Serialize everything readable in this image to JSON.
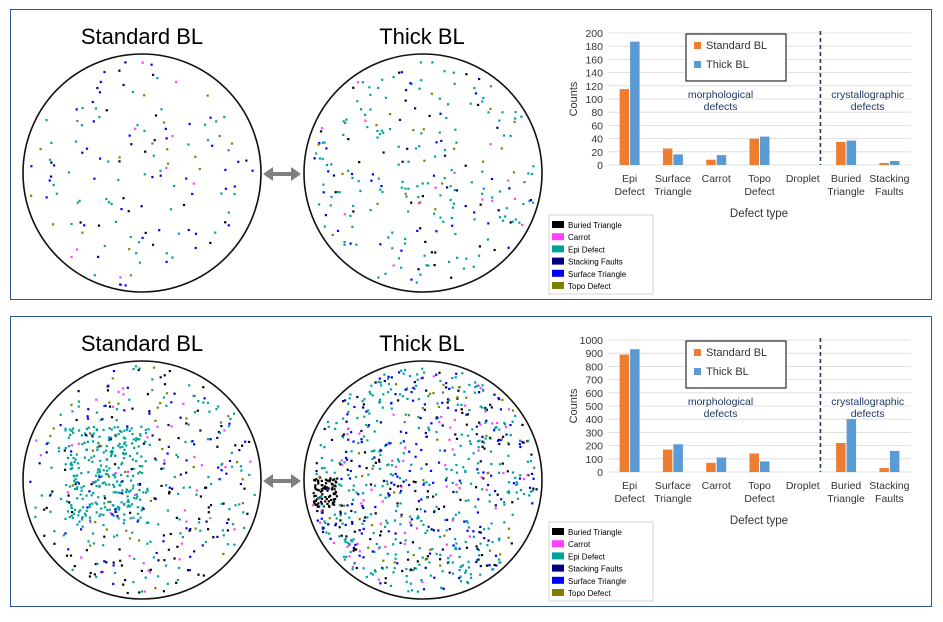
{
  "colors": {
    "buried_triangle": "#000000",
    "carrot": "#ff40ff",
    "epi_defect": "#00a39a",
    "stacking_faults": "#000080",
    "surface_triangle": "#0000ff",
    "topo_defect": "#808000",
    "standard_bl": "#ed7d31",
    "thick_bl": "#5b9bd5",
    "divider": "#1f3864",
    "annotation": "#1f3864"
  },
  "panels": [
    {
      "map_titles": [
        "Standard BL",
        "Thick BL"
      ],
      "arrow_icon": "double-arrow-icon",
      "map_legend": [
        {
          "label": "Buried Triangle",
          "color_key": "buried_triangle"
        },
        {
          "label": "Carrot",
          "color_key": "carrot"
        },
        {
          "label": "Epi Defect",
          "color_key": "epi_defect"
        },
        {
          "label": "Stacking Faults",
          "color_key": "stacking_faults"
        },
        {
          "label": "Surface Triangle",
          "color_key": "surface_triangle"
        },
        {
          "label": "Topo Defect",
          "color_key": "topo_defect"
        }
      ],
      "chart_data": {
        "type": "bar",
        "categories": [
          [
            "Epi",
            "Defect"
          ],
          [
            "Surface",
            "Triangle"
          ],
          [
            "Carrot"
          ],
          [
            "Topo",
            "Defect"
          ],
          [
            "Droplet"
          ],
          [
            "Buried",
            "Triangle"
          ],
          [
            "Stacking",
            "Faults"
          ]
        ],
        "series": [
          {
            "name": "Standard BL",
            "values": [
              115,
              25,
              8,
              40,
              0,
              35,
              3
            ]
          },
          {
            "name": "Thick BL",
            "values": [
              187,
              16,
              15,
              43,
              0,
              37,
              6
            ]
          }
        ],
        "xlabel": "Defect type",
        "ylabel": "Counts",
        "ylim": [
          0,
          200
        ],
        "yticks": [
          0,
          20,
          40,
          60,
          80,
          100,
          120,
          140,
          160,
          180,
          200
        ],
        "grid": true,
        "legend_position": "top",
        "annotations": [
          [
            "morphological",
            "defects"
          ],
          [
            "crystallographic",
            "defects"
          ]
        ]
      }
    },
    {
      "map_titles": [
        "Standard BL",
        "Thick BL"
      ],
      "arrow_icon": "double-arrow-icon",
      "map_legend": [
        {
          "label": "Buried Triangle",
          "color_key": "buried_triangle"
        },
        {
          "label": "Carrot",
          "color_key": "carrot"
        },
        {
          "label": "Epi Defect",
          "color_key": "epi_defect"
        },
        {
          "label": "Stacking Faults",
          "color_key": "stacking_faults"
        },
        {
          "label": "Surface Triangle",
          "color_key": "surface_triangle"
        },
        {
          "label": "Topo Defect",
          "color_key": "topo_defect"
        }
      ],
      "chart_data": {
        "type": "bar",
        "categories": [
          [
            "Epi",
            "Defect"
          ],
          [
            "Surface",
            "Triangle"
          ],
          [
            "Carrot"
          ],
          [
            "Topo",
            "Defect"
          ],
          [
            "Droplet"
          ],
          [
            "Buried",
            "Triangle"
          ],
          [
            "Stacking",
            "Faults"
          ]
        ],
        "series": [
          {
            "name": "Standard BL",
            "values": [
              890,
              170,
              70,
              140,
              0,
              220,
              30
            ]
          },
          {
            "name": "Thick BL",
            "values": [
              930,
              210,
              110,
              80,
              0,
              400,
              160
            ]
          }
        ],
        "xlabel": "Defect type",
        "ylabel": "Counts",
        "ylim": [
          0,
          1000
        ],
        "yticks": [
          0,
          100,
          200,
          300,
          400,
          500,
          600,
          700,
          800,
          900,
          1000
        ],
        "grid": true,
        "legend_position": "top",
        "annotations": [
          [
            "morphological",
            "defects"
          ],
          [
            "crystallographic",
            "defects"
          ]
        ]
      }
    }
  ]
}
